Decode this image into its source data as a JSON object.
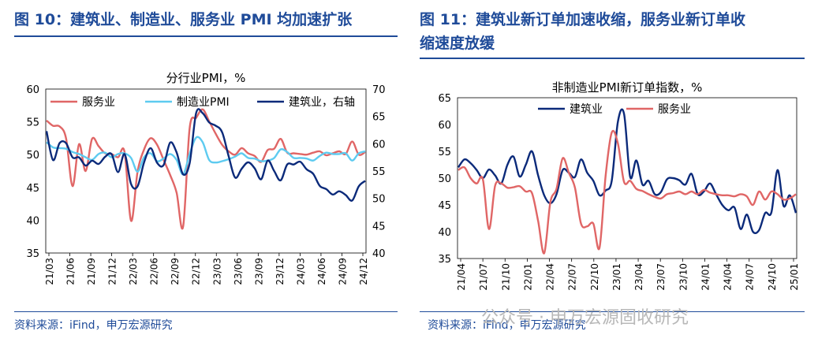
{
  "left_title": "图 10：建筑业、制造业、服务业 PMI 均加速扩张",
  "right_title_line1": "图 11：建筑业新订单加速收缩，服务业新订单收",
  "right_title_line2": "缩速度放缓",
  "left_source": "资料来源：iFind，申万宏源研究",
  "right_source": "资料来源：iFind，申万宏源研究",
  "watermark": "公众号 · 申万宏源固收研究",
  "colors": {
    "blue_title": "#1f4b99",
    "services": "#e06666",
    "manufacturing": "#5ecbf0",
    "construction": "#0b2a7a"
  },
  "chart_data": [
    {
      "type": "line",
      "title": "分行业PMI，%",
      "x_tick_labels": [
        "21/03",
        "21/06",
        "21/09",
        "21/12",
        "22/03",
        "22/06",
        "22/09",
        "22/12",
        "23/03",
        "23/06",
        "23/09",
        "23/12",
        "24/03",
        "24/06",
        "24/09",
        "24/12"
      ],
      "left_ylim": [
        35,
        60
      ],
      "left_ticks": [
        35,
        40,
        45,
        50,
        55,
        60
      ],
      "right_ylim": [
        40,
        70
      ],
      "right_ticks": [
        40,
        45,
        50,
        55,
        60,
        65,
        70
      ],
      "series": [
        {
          "name": "服务业",
          "axis": "left",
          "color": "#e06666",
          "values": [
            55.2,
            54.4,
            54.3,
            52.5,
            45.2,
            51.6,
            47.5,
            52.4,
            51.3,
            50.2,
            50.1,
            49.6,
            50.4,
            39.9,
            47.4,
            50.8,
            52.5,
            51.5,
            49.2,
            46.9,
            44.2,
            39.0,
            54.0,
            55.6,
            56.9,
            55.1,
            53.2,
            51.5,
            50.5,
            50.0,
            51.0,
            50.2,
            49.8,
            48.9,
            50.7,
            50.9,
            52.4,
            50.3,
            50.2,
            50.1,
            50.0,
            50.3,
            50.5,
            49.9,
            50.2,
            50.5,
            50.1,
            52.0,
            50.0,
            50.4
          ]
        },
        {
          "name": "制造业PMI",
          "axis": "left",
          "color": "#5ecbf0",
          "values": [
            51.9,
            51.1,
            51.0,
            50.9,
            50.4,
            50.1,
            49.6,
            49.2,
            50.1,
            50.3,
            49.6,
            50.1,
            50.2,
            49.5,
            47.4,
            49.6,
            50.2,
            49.0,
            49.4,
            50.1,
            49.2,
            47.0,
            50.1,
            52.6,
            51.9,
            49.2,
            48.8,
            49.0,
            49.3,
            49.7,
            50.2,
            49.5,
            49.4,
            49.0,
            49.1,
            49.5,
            50.8,
            50.4,
            49.5,
            49.5,
            49.4,
            49.1,
            49.8,
            50.3,
            50.1,
            50.1,
            50.2,
            49.1,
            50.2,
            50.5
          ]
        },
        {
          "name": "建筑业，右轴",
          "axis": "right",
          "color": "#0b2a7a",
          "values": [
            62.3,
            57.0,
            60.1,
            60.1,
            57.5,
            57.5,
            56.0,
            56.9,
            56.3,
            57.6,
            58.1,
            54.8,
            58.1,
            52.6,
            52.2,
            56.6,
            59.2,
            56.5,
            56.1,
            60.2,
            58.4,
            54.4,
            56.4,
            65.6,
            65.6,
            63.9,
            63.3,
            62.1,
            57.7,
            53.8,
            55.4,
            56.6,
            55.5,
            53.5,
            56.9,
            55.0,
            53.3,
            56.2,
            56.2,
            56.7,
            55.3,
            54.5,
            52.3,
            51.7,
            50.7,
            51.3,
            50.6,
            49.6,
            52.2,
            53.2
          ]
        }
      ]
    },
    {
      "type": "line",
      "title": "非制造业PMI新订单指数，%",
      "x_tick_labels": [
        "21/04",
        "21/07",
        "21/10",
        "22/01",
        "22/04",
        "22/07",
        "22/10",
        "23/01",
        "23/04",
        "23/07",
        "23/10",
        "24/01",
        "24/04",
        "24/07",
        "24/10",
        "25/01"
      ],
      "ylim": [
        35,
        65
      ],
      "y_ticks": [
        35,
        40,
        45,
        50,
        55,
        60,
        65
      ],
      "series": [
        {
          "name": "建筑业",
          "color": "#0b2a7a",
          "values": [
            52.0,
            53.5,
            52.8,
            51.5,
            50.0,
            51.6,
            50.5,
            49.0,
            52.5,
            54.0,
            50.3,
            52.5,
            55.0,
            50.5,
            46.8,
            45.3,
            47.0,
            51.5,
            51.0,
            50.2,
            53.5,
            51.0,
            49.5,
            46.8,
            47.7,
            49.5,
            60.5,
            62.0,
            50.2,
            53.3,
            48.8,
            49.5,
            47.0,
            47.4,
            49.8,
            50.0,
            49.6,
            48.8,
            50.8,
            47.0,
            47.5,
            49.0,
            47.0,
            45.0,
            44.0,
            44.5,
            40.5,
            43.2,
            40.0,
            40.3,
            43.5,
            43.6,
            51.5,
            44.8,
            46.8,
            43.5
          ]
        },
        {
          "name": "服务业",
          "color": "#e06666",
          "values": [
            51.5,
            52.0,
            50.0,
            49.0,
            49.8,
            40.5,
            48.6,
            49.0,
            48.2,
            48.3,
            48.5,
            47.5,
            47.2,
            42.0,
            36.0,
            45.5,
            48.0,
            53.7,
            51.0,
            48.2,
            41.5,
            41.0,
            41.5,
            37.0,
            50.5,
            58.5,
            56.5,
            49.3,
            49.5,
            48.0,
            47.6,
            47.0,
            46.5,
            46.2,
            47.0,
            47.2,
            47.5,
            47.0,
            47.5,
            47.0,
            47.8,
            47.3,
            47.0,
            46.8,
            46.8,
            46.6,
            47.0,
            46.6,
            45.0,
            47.5,
            46.0,
            47.5,
            47.0,
            46.0,
            46.2,
            47.0
          ]
        }
      ]
    }
  ]
}
